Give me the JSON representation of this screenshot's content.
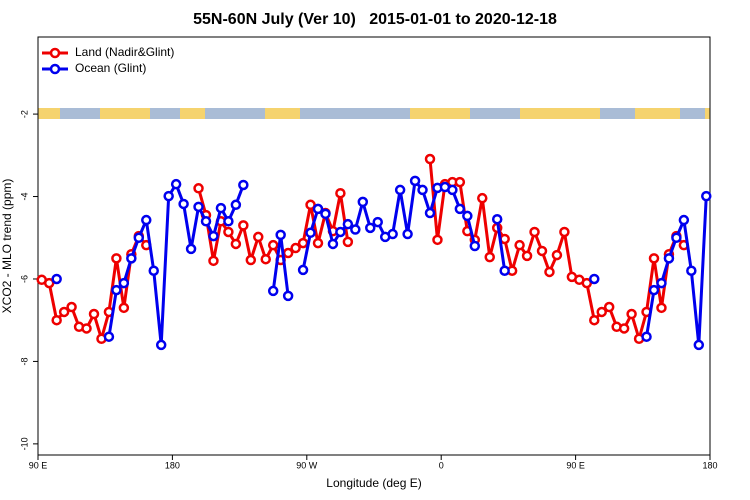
{
  "chart_data": {
    "type": "line",
    "title": "55N-60N July (Ver 10)   2015-01-01 to 2020-12-18",
    "x_label": "Longitude (deg E)",
    "y_label": "XCO2 - MLO trend (ppm)",
    "xlim": [
      90,
      540
    ],
    "ylim": [
      -10.27,
      -0.13
    ],
    "xticks": [
      {
        "value": 90,
        "label": "90 E"
      },
      {
        "value": 180,
        "label": "180"
      },
      {
        "value": 270,
        "label": "90 W"
      },
      {
        "value": 360,
        "label": "0"
      },
      {
        "value": 450,
        "label": "90 E"
      },
      {
        "value": 540,
        "label": "180"
      }
    ],
    "yticks": [
      -10,
      -8,
      -6,
      -4,
      -2
    ],
    "legend": "top-left",
    "x": [
      92.5,
      97.5,
      102.5,
      107.5,
      112.5,
      117.5,
      122.5,
      127.5,
      132.5,
      137.5,
      142.5,
      147.5,
      152.5,
      157.5,
      162.5,
      167.5,
      172.5,
      177.5,
      182.5,
      187.5,
      192.5,
      197.5,
      202.5,
      207.5,
      212.5,
      217.5,
      222.5,
      227.5,
      232.5,
      237.5,
      242.5,
      247.5,
      252.5,
      257.5,
      262.5,
      267.5,
      272.5,
      277.5,
      282.5,
      287.5,
      292.5,
      297.5,
      302.5,
      307.5,
      312.5,
      317.5,
      322.5,
      327.5,
      332.5,
      337.5,
      342.5,
      347.5,
      352.5,
      357.5,
      362.5,
      367.5,
      372.5,
      377.5,
      382.5,
      387.5,
      392.5,
      397.5,
      402.5,
      407.5,
      412.5,
      417.5,
      422.5,
      427.5,
      432.5,
      437.5,
      442.5,
      447.5,
      452.5,
      457.5,
      462.5,
      467.5,
      472.5,
      477.5,
      482.5,
      487.5,
      492.5,
      497.5,
      502.5,
      507.5,
      512.5,
      517.5,
      522.5,
      527.5,
      532.5,
      537.5
    ],
    "series": [
      {
        "name": "Land (Nadir&Glint)",
        "color": "#ee0000",
        "values": [
          -6.02,
          -6.1,
          -7.0,
          -6.8,
          -6.68,
          -7.16,
          -7.2,
          -6.85,
          -7.45,
          -6.8,
          -5.5,
          -6.7,
          -5.4,
          -4.96,
          -5.18,
          null,
          null,
          null,
          null,
          null,
          null,
          -3.8,
          -4.45,
          -5.56,
          -4.6,
          -4.86,
          -5.15,
          -4.7,
          -5.54,
          -4.98,
          -5.52,
          -5.18,
          -5.54,
          -5.37,
          -5.25,
          -5.13,
          -4.2,
          -5.13,
          -4.4,
          -4.84,
          -3.92,
          -5.1,
          null,
          null,
          null,
          null,
          null,
          null,
          null,
          null,
          null,
          null,
          -3.09,
          -5.05,
          -3.7,
          -3.65,
          -3.65,
          -4.84,
          -5.05,
          -4.04,
          -5.47,
          -4.76,
          -5.03,
          -5.8,
          -5.18,
          -5.44,
          -4.86,
          -5.32,
          -5.83,
          -5.42,
          -4.86,
          -5.95,
          -6.02,
          -6.1,
          -7.0,
          -6.8,
          -6.68,
          -7.16,
          -7.2,
          -6.85,
          -7.45,
          -6.8,
          -5.5,
          -6.7,
          -5.4,
          -4.96,
          -5.18,
          null,
          null,
          null
        ]
      },
      {
        "name": "Ocean (Glint)",
        "color": "#0000ee",
        "values": [
          null,
          null,
          -6.0,
          null,
          null,
          null,
          null,
          null,
          null,
          -7.4,
          -6.27,
          -6.1,
          -5.5,
          -5.0,
          -4.57,
          -5.8,
          -7.6,
          -3.99,
          -3.7,
          -4.18,
          -5.27,
          -4.25,
          -4.6,
          -4.96,
          -4.28,
          -4.6,
          -4.2,
          -3.72,
          null,
          null,
          null,
          -6.29,
          -4.93,
          -6.41,
          null,
          -5.78,
          -4.88,
          -4.3,
          -4.42,
          -5.15,
          -4.86,
          -4.67,
          -4.8,
          -4.13,
          -4.76,
          -4.62,
          -4.98,
          -4.91,
          -3.84,
          -4.91,
          -3.62,
          -3.84,
          -4.4,
          -3.79,
          -3.77,
          -3.84,
          -4.3,
          -4.47,
          -5.2,
          null,
          null,
          -4.55,
          -5.8,
          null,
          null,
          null,
          null,
          null,
          null,
          null,
          null,
          null,
          null,
          null,
          -6.0,
          null,
          null,
          null,
          null,
          null,
          null,
          -7.4,
          -6.27,
          -6.1,
          -5.5,
          -5.0,
          -4.57,
          -5.8,
          -7.6,
          -3.99
        ]
      }
    ]
  }
}
